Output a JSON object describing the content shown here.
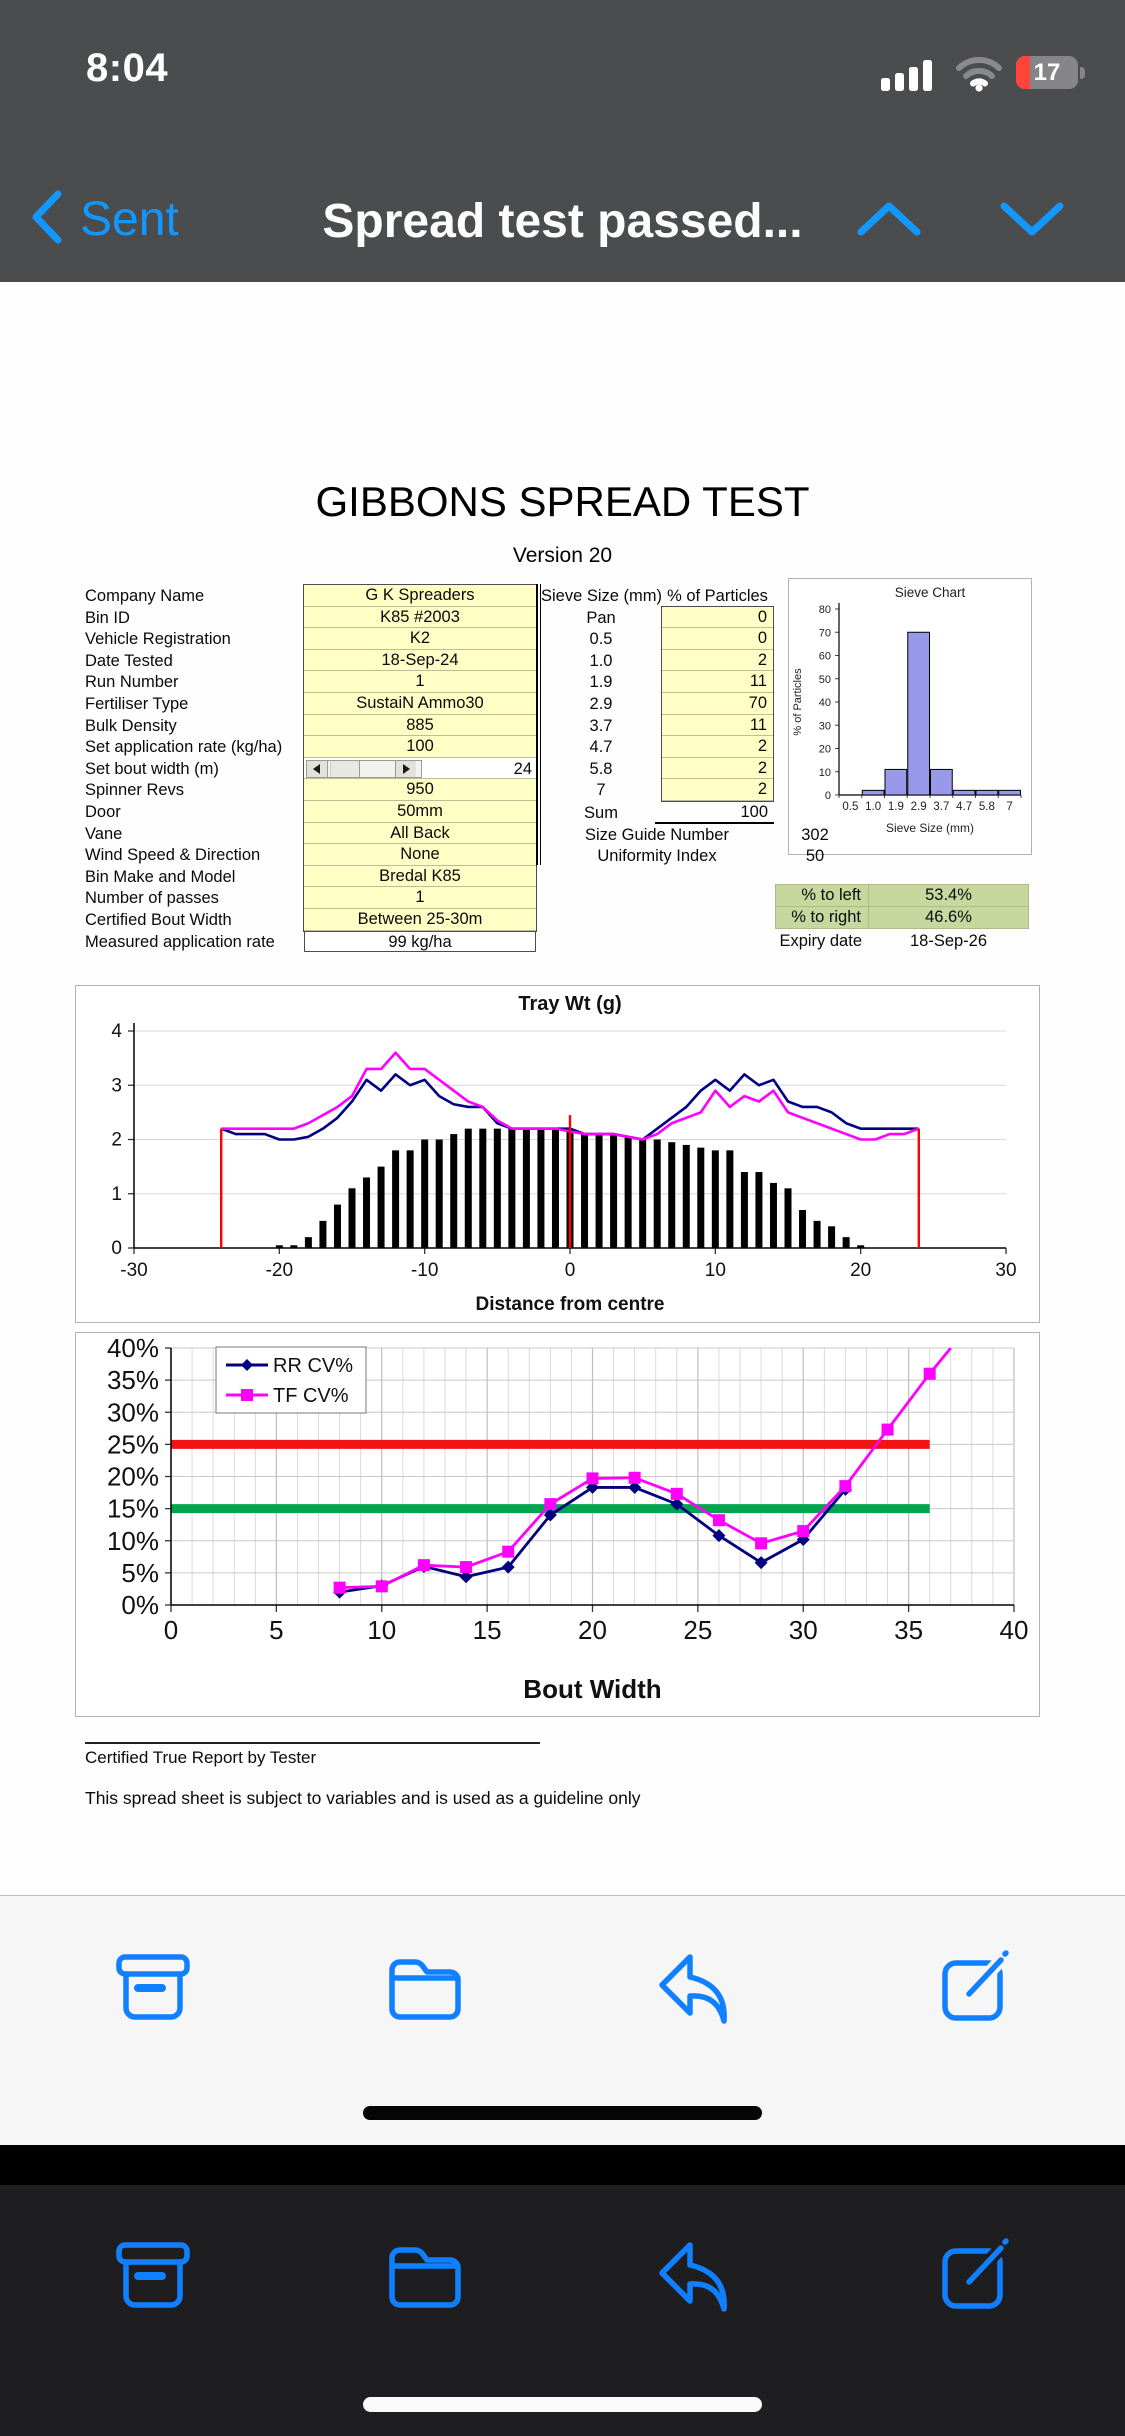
{
  "status_bar": {
    "time": "8:04",
    "battery_percent": "17"
  },
  "nav": {
    "back_label": "Sent",
    "title": "Spread test passed..."
  },
  "document": {
    "title": "GIBBONS SPREAD TEST",
    "version": "Version 20",
    "info_rows": [
      {
        "label": "Company Name",
        "value": "G K Spreaders",
        "type": "yellow"
      },
      {
        "label": "Bin ID",
        "value": "K85 #2003",
        "type": "yellow"
      },
      {
        "label": "Vehicle Registration",
        "value": "K2",
        "type": "yellow"
      },
      {
        "label": "Date Tested",
        "value": "18-Sep-24",
        "type": "yellow"
      },
      {
        "label": "Run Number",
        "value": "1",
        "type": "yellow"
      },
      {
        "label": "Fertiliser Type",
        "value": "SustaiN Ammo30",
        "type": "yellow"
      },
      {
        "label": "Bulk Density",
        "value": "885",
        "type": "yellow"
      },
      {
        "label": "Set application rate (kg/ha)",
        "value": "100",
        "type": "yellow"
      },
      {
        "label": "Set bout width (m)",
        "value": "24",
        "type": "scroll"
      },
      {
        "label": "Spinner Revs",
        "value": "950",
        "type": "yellow"
      },
      {
        "label": "Door",
        "value": "50mm",
        "type": "yellow"
      },
      {
        "label": "Vane",
        "value": "All Back",
        "type": "yellow"
      },
      {
        "label": "Wind Speed & Direction",
        "value": "None",
        "type": "yellow"
      },
      {
        "label": "Bin Make and Model",
        "value": "Bredal K85",
        "type": "yellow"
      },
      {
        "label": "Number of passes",
        "value": "1",
        "type": "yellow"
      },
      {
        "label": "Certified Bout Width",
        "value": "Between 25-30m",
        "type": "yellow"
      },
      {
        "label": "Measured application rate",
        "value": "99 kg/ha",
        "type": "white"
      }
    ],
    "sieve_table": {
      "col1_header": "Sieve Size (mm)",
      "col2_header": "% of Particles",
      "rows": [
        {
          "size": "Pan",
          "pct": "0"
        },
        {
          "size": "0.5",
          "pct": "0"
        },
        {
          "size": "1.0",
          "pct": "2"
        },
        {
          "size": "1.9",
          "pct": "11"
        },
        {
          "size": "2.9",
          "pct": "70"
        },
        {
          "size": "3.7",
          "pct": "11"
        },
        {
          "size": "4.7",
          "pct": "2"
        },
        {
          "size": "5.8",
          "pct": "2"
        },
        {
          "size": "7",
          "pct": "2"
        }
      ],
      "sum_label": "Sum",
      "sum_value": "100",
      "size_guide_label": "Size Guide Number",
      "size_guide_value": "302",
      "uniformity_label": "Uniformity Index",
      "uniformity_value": "50"
    },
    "spread_summary": {
      "left_label": "% to left",
      "left_value": "53.4%",
      "right_label": "% to right",
      "right_value": "46.6%",
      "expiry_label": "Expiry date",
      "expiry_value": "18-Sep-26"
    },
    "footer_line1": "Certified True Report by Tester",
    "footer_line2": "This spread sheet is subject to variables and is used as a guideline only"
  },
  "chart_data": [
    {
      "id": "sieve",
      "type": "bar",
      "title": "Sieve Chart",
      "xlabel": "Sieve Size (mm)",
      "ylabel": "% of Particles",
      "categories": [
        "0.5",
        "1.0",
        "1.9",
        "2.9",
        "3.7",
        "4.7",
        "5.8",
        "7"
      ],
      "values": [
        0,
        2,
        11,
        70,
        11,
        2,
        2,
        2
      ],
      "ylim": [
        0,
        80
      ],
      "ytick_step": 10,
      "grid": false,
      "bar_color": "#9999ec"
    },
    {
      "id": "tray",
      "type": "bar+line",
      "title": "Tray Wt (g)",
      "xlabel": "Distance from centre",
      "xlim": [
        -30,
        30
      ],
      "xtick_step": 10,
      "ylim": [
        0,
        4
      ],
      "ytick_step": 1,
      "grid": true,
      "bars": {
        "x_start": -20,
        "color": "#000000",
        "values": [
          0.05,
          0.05,
          0.2,
          0.5,
          0.8,
          1.1,
          1.3,
          1.5,
          1.8,
          1.8,
          2.0,
          2.0,
          2.1,
          2.2,
          2.2,
          2.2,
          2.2,
          2.2,
          2.2,
          2.2,
          2.2,
          2.1,
          2.1,
          2.1,
          2.05,
          2.0,
          2.0,
          1.95,
          1.9,
          1.85,
          1.8,
          1.8,
          1.4,
          1.4,
          1.2,
          1.1,
          0.7,
          0.5,
          0.4,
          0.2,
          0.05
        ]
      },
      "lines": [
        {
          "name": "RR",
          "color": "#000080",
          "x_start": -24,
          "values": [
            2.2,
            2.1,
            2.1,
            2.1,
            2.0,
            2.0,
            2.05,
            2.2,
            2.4,
            2.7,
            3.1,
            2.9,
            3.2,
            3.0,
            3.1,
            2.8,
            2.65,
            2.6,
            2.6,
            2.3,
            2.2,
            2.2,
            2.2,
            2.2,
            2.2,
            2.1,
            2.1,
            2.1,
            2.05,
            2.0,
            2.2,
            2.4,
            2.6,
            2.9,
            3.1,
            2.9,
            3.2,
            3.0,
            3.1,
            2.7,
            2.6,
            2.6,
            2.5,
            2.3,
            2.2,
            2.2,
            2.2,
            2.2,
            2.2
          ]
        },
        {
          "name": "TF",
          "color": "#ff00ff",
          "x_start": -24,
          "values": [
            2.2,
            2.2,
            2.2,
            2.2,
            2.2,
            2.2,
            2.3,
            2.45,
            2.6,
            2.8,
            3.3,
            3.3,
            3.6,
            3.3,
            3.3,
            3.1,
            2.9,
            2.7,
            2.6,
            2.35,
            2.2,
            2.2,
            2.2,
            2.2,
            2.15,
            2.1,
            2.1,
            2.1,
            2.05,
            2.0,
            2.1,
            2.3,
            2.4,
            2.5,
            2.9,
            2.6,
            2.8,
            2.7,
            2.9,
            2.5,
            2.4,
            2.3,
            2.2,
            2.1,
            2.0,
            2.0,
            2.1,
            2.1,
            2.2
          ]
        }
      ],
      "red_segments": [
        {
          "x": -24,
          "y1": 0,
          "y2": 2.2
        },
        {
          "x": 0,
          "y1": 0,
          "y2": 2.45
        },
        {
          "x": 24,
          "y1": 0,
          "y2": 2.2
        }
      ],
      "red_color": "#ff0000"
    },
    {
      "id": "cv",
      "type": "line",
      "xlabel": "Bout Width",
      "xlim": [
        0,
        40
      ],
      "xtick_step": 5,
      "minor_x_step": 1,
      "ylim": [
        0,
        40
      ],
      "ytick_step": 5,
      "ytick_suffix": "%",
      "grid": true,
      "legend": [
        "RR CV%",
        "TF CV%"
      ],
      "series": [
        {
          "name": "RR CV%",
          "color": "#000080",
          "marker": "diamond",
          "x": [
            8,
            10,
            12,
            14,
            16,
            18,
            20,
            22,
            24,
            26,
            28,
            30,
            32
          ],
          "y": [
            2.0,
            3.0,
            6.0,
            4.4,
            5.9,
            14.0,
            18.3,
            18.3,
            15.7,
            10.8,
            6.6,
            10.2,
            18.0
          ]
        },
        {
          "name": "TF CV%",
          "color": "#ff00ff",
          "marker": "square",
          "x": [
            8,
            10,
            12,
            14,
            16,
            18,
            20,
            22,
            24,
            26,
            28,
            30,
            32,
            34,
            36,
            37
          ],
          "y": [
            2.7,
            2.9,
            6.2,
            5.9,
            8.3,
            15.7,
            19.7,
            19.8,
            17.3,
            13.2,
            9.6,
            11.5,
            18.5,
            27.3,
            36.0,
            40.0
          ]
        }
      ],
      "thresholds": [
        {
          "y": 25,
          "color": "#f01414",
          "x1": 0,
          "x2": 36
        },
        {
          "y": 15,
          "color": "#00a550",
          "x1": 0,
          "x2": 36
        }
      ]
    }
  ],
  "toolbar": {
    "icons": [
      "archive-icon",
      "folder-icon",
      "reply-icon",
      "compose-icon"
    ]
  },
  "colors": {
    "blue": "#1180ff",
    "yellow_cell": "#ffffc5",
    "green_cell": "#c7d89f",
    "bar_purple": "#9999ec",
    "navy": "#000080",
    "magenta": "#ff00ff",
    "red": "#ff0000",
    "threshold_green": "#00a550",
    "threshold_red": "#f01414"
  }
}
